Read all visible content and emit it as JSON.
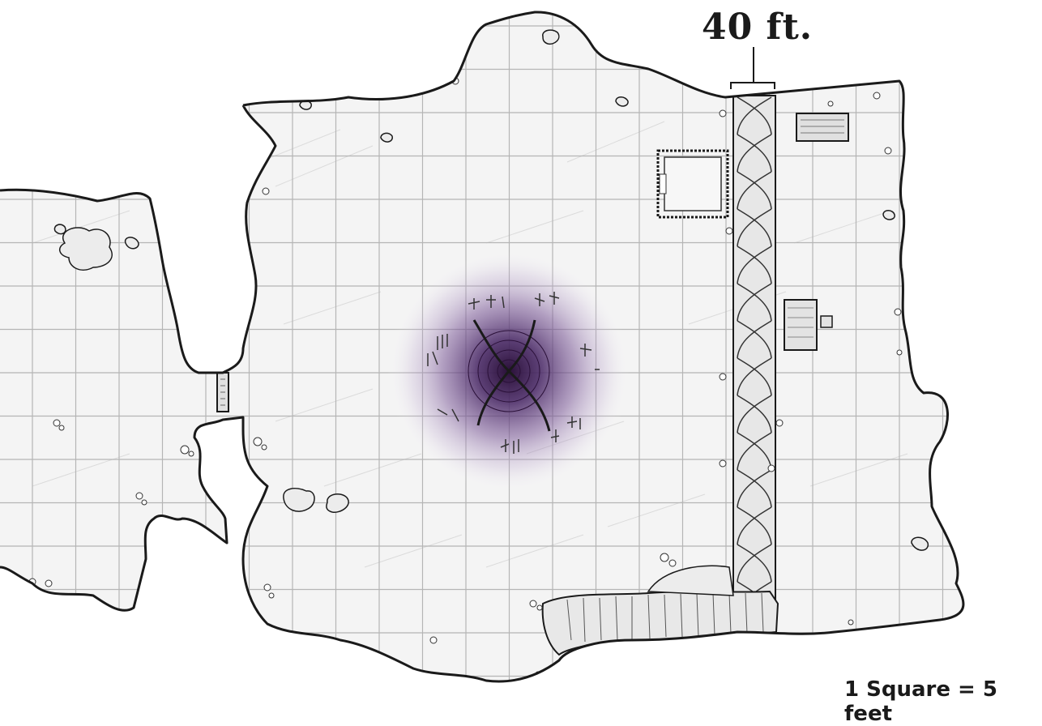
{
  "map": {
    "height_label": "40 ft.",
    "scale_label": "1 Square = 5 feet",
    "colors": {
      "floor": "#f4f4f4",
      "grid": "#b5b5b5",
      "wall": "#1a1a1a",
      "rune_glow": "#5b3a78",
      "background": "#ffffff"
    },
    "features": [
      "purple-vortex-with-runes",
      "cliff-ledge",
      "rope-column",
      "crate",
      "bed",
      "table",
      "door",
      "rocks",
      "rubble"
    ]
  }
}
